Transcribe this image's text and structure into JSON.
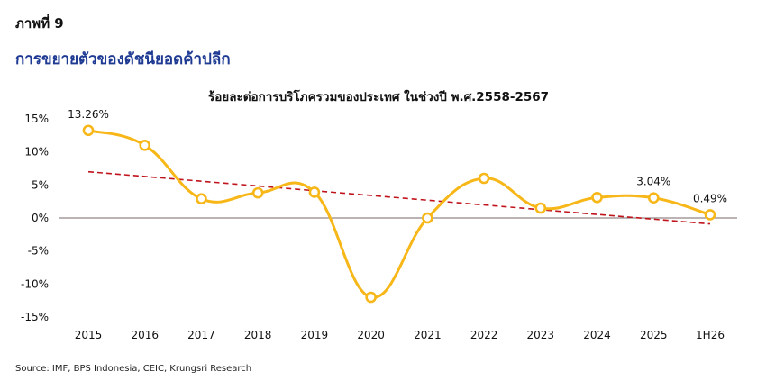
{
  "figure_label": "ภาพที่ 9",
  "figure_title": "การขยายตัวของดัชนียอดค้าปลีก",
  "source": "Source: IMF, BPS Indonesia, CEIC, Krungsri Research",
  "colors": {
    "series": "#f7b718",
    "trend": "#c0141c",
    "title": "#1f3a93",
    "zero_line": "#7a6a6a"
  },
  "chart_data": {
    "type": "line",
    "title": "ร้อยละต่อการบริโภครวมของประเทศ ในช่วงปี พ.ศ.2558-2567",
    "xlabel": "",
    "ylabel": "",
    "categories": [
      "2015",
      "2016",
      "2017",
      "2018",
      "2019",
      "2020",
      "2021",
      "2022",
      "2023",
      "2024",
      "2025",
      "1H26"
    ],
    "ylim": [
      -15,
      15
    ],
    "yticks": [
      15,
      10,
      5,
      0,
      -5,
      -10,
      -15
    ],
    "ytick_labels": [
      "15%",
      "10%",
      "5%",
      "0%",
      "-5%",
      "-10%",
      "-15%"
    ],
    "grid": false,
    "series": [
      {
        "values": [
          13.26,
          11.0,
          2.9,
          3.8,
          3.9,
          -12.0,
          0.0,
          6.0,
          1.5,
          3.1,
          3.04,
          0.49
        ]
      }
    ],
    "trendline": {
      "start": 7.0,
      "end": -0.9
    },
    "data_labels": [
      {
        "index": 0,
        "text": "13.26%"
      },
      {
        "index": 10,
        "text": "3.04%"
      },
      {
        "index": 11,
        "text": "0.49%"
      }
    ]
  }
}
